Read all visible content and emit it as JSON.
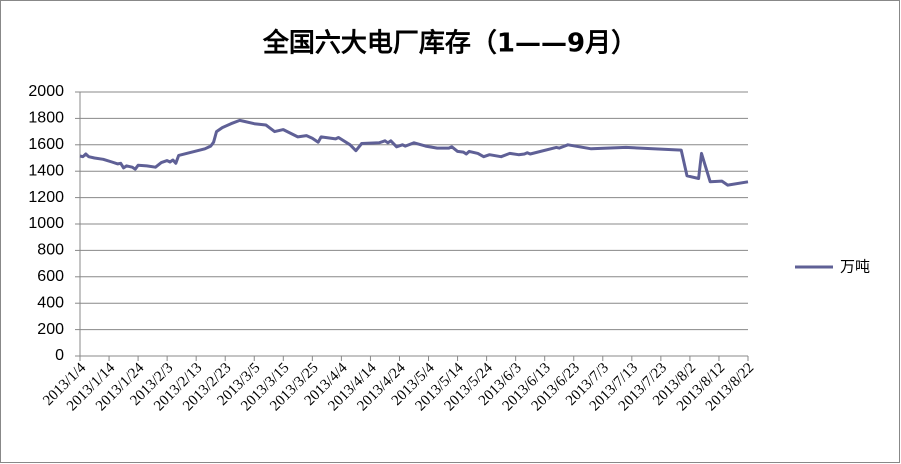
{
  "chart_data": {
    "type": "line",
    "title": "全国六大电厂库存（1——9月）",
    "x": [
      "2013/1/4",
      "2013/1/5",
      "2013/1/6",
      "2013/1/7",
      "2013/1/9",
      "2013/1/12",
      "2013/1/15",
      "2013/1/17",
      "2013/1/18",
      "2013/1/19",
      "2013/1/20",
      "2013/1/22",
      "2013/1/23",
      "2013/1/24",
      "2013/1/27",
      "2013/1/30",
      "2013/2/1",
      "2013/2/3",
      "2013/2/4",
      "2013/2/5",
      "2013/2/6",
      "2013/2/7",
      "2013/2/16",
      "2013/2/18",
      "2013/2/19",
      "2013/2/20",
      "2013/2/22",
      "2013/2/25",
      "2013/2/28",
      "2013/3/1",
      "2013/3/5",
      "2013/3/9",
      "2013/3/12",
      "2013/3/15",
      "2013/3/20",
      "2013/3/23",
      "2013/3/25",
      "2013/3/27",
      "2013/3/28",
      "2013/4/2",
      "2013/4/3",
      "2013/4/7",
      "2013/4/9",
      "2013/4/11",
      "2013/4/17",
      "2013/4/19",
      "2013/4/20",
      "2013/4/21",
      "2013/4/23",
      "2013/4/25",
      "2013/4/26",
      "2013/4/29",
      "2013/5/3",
      "2013/5/7",
      "2013/5/11",
      "2013/5/12",
      "2013/5/14",
      "2013/5/16",
      "2013/5/17",
      "2013/5/18",
      "2013/5/21",
      "2013/5/23",
      "2013/5/25",
      "2013/5/29",
      "2013/6/1",
      "2013/6/4",
      "2013/6/6",
      "2013/6/7",
      "2013/6/8",
      "2013/6/17",
      "2013/6/18",
      "2013/6/21",
      "2013/6/29",
      "2013/7/11",
      "2013/7/30",
      "2013/8/1",
      "2013/8/5",
      "2013/8/6",
      "2013/8/9",
      "2013/8/13",
      "2013/8/15",
      "2013/8/22"
    ],
    "series": [
      {
        "name": "万吨",
        "color": "#5f6096",
        "values": [
          1515,
          1510,
          1530,
          1510,
          1500,
          1490,
          1470,
          1455,
          1460,
          1425,
          1440,
          1430,
          1415,
          1445,
          1440,
          1430,
          1465,
          1480,
          1470,
          1485,
          1460,
          1520,
          1570,
          1590,
          1620,
          1700,
          1730,
          1760,
          1785,
          1780,
          1760,
          1750,
          1700,
          1715,
          1660,
          1670,
          1650,
          1620,
          1660,
          1645,
          1655,
          1600,
          1555,
          1610,
          1615,
          1630,
          1615,
          1630,
          1585,
          1600,
          1590,
          1615,
          1590,
          1575,
          1575,
          1585,
          1550,
          1545,
          1530,
          1550,
          1535,
          1510,
          1525,
          1510,
          1535,
          1525,
          1530,
          1540,
          1530,
          1580,
          1575,
          1600,
          1570,
          1580,
          1560,
          1365,
          1345,
          1535,
          1320,
          1325,
          1295,
          1320
        ]
      }
    ],
    "xlim": [
      "2013/1/4",
      "2013/8/22"
    ],
    "xticks": [
      "2013/1/4",
      "2013/1/14",
      "2013/1/24",
      "2013/2/3",
      "2013/2/13",
      "2013/2/23",
      "2013/3/5",
      "2013/3/15",
      "2013/3/25",
      "2013/4/4",
      "2013/4/14",
      "2013/4/24",
      "2013/5/4",
      "2013/5/14",
      "2013/5/24",
      "2013/6/3",
      "2013/6/13",
      "2013/6/23",
      "2013/7/3",
      "2013/7/13",
      "2013/7/23",
      "2013/8/2",
      "2013/8/12",
      "2013/8/22"
    ],
    "ylim": [
      0,
      2000
    ],
    "yticks": [
      0,
      200,
      400,
      600,
      800,
      1000,
      1200,
      1400,
      1600,
      1800,
      2000
    ],
    "grid": true,
    "legend": "right"
  }
}
